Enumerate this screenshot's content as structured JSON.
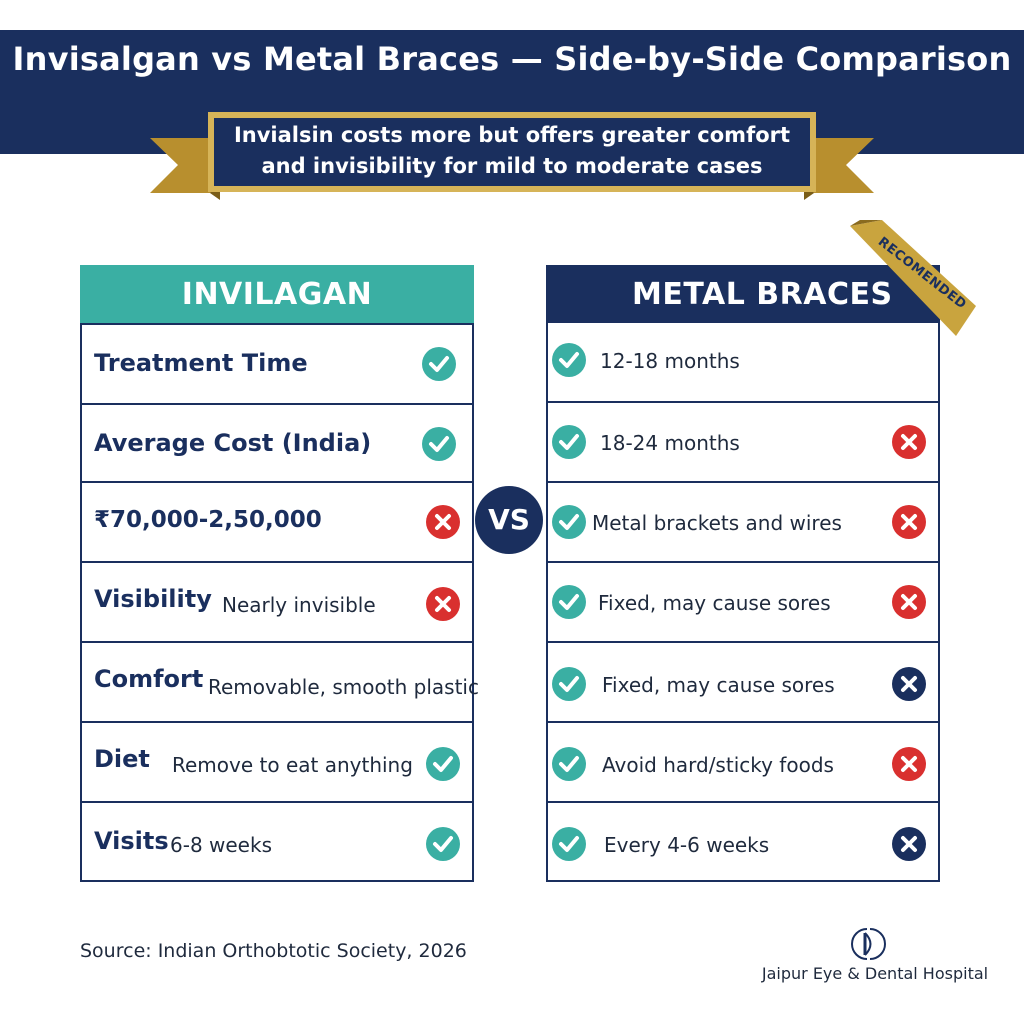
{
  "title": "Invisalgan vs Metal Braces — Side-by-Side Comparison",
  "ribbon": {
    "line1": "Invialsin costs more but offers greater comfort",
    "line2": "and invisibility for mild to moderate cases"
  },
  "vs_label": "VS",
  "badge": "RECOMENDED",
  "colors": {
    "navy": "#1a2f5e",
    "teal": "#3aafa3",
    "red": "#d9302f",
    "gold": "#c9a43e"
  },
  "left_table": {
    "header": "INVILAGAN",
    "rows": [
      {
        "label": "Treatment Time",
        "value": "",
        "icon": "check-icon"
      },
      {
        "label": "Average Cost (India)",
        "value": "",
        "icon": "check-icon"
      },
      {
        "label": "₹70,000-2,50,000",
        "value": "",
        "icon": "cross-icon"
      },
      {
        "label": "Visibility",
        "value": "Nearly invisible",
        "icon": "cross-icon"
      },
      {
        "label": "Comfort",
        "value": "Removable, smooth plastic",
        "icon": ""
      },
      {
        "label": "Diet",
        "value": "Remove to eat anything",
        "icon": "check-icon"
      },
      {
        "label": "Visits",
        "value": "6-8 weeks",
        "icon": "check-icon"
      }
    ]
  },
  "right_table": {
    "header": "METAL BRACES",
    "rows": [
      {
        "value": "12-18 months",
        "left_icon": "check-icon",
        "right_icon": ""
      },
      {
        "value": "18-24 months",
        "left_icon": "check-icon",
        "right_icon": "cross-icon"
      },
      {
        "value": "Metal brackets and wires",
        "left_icon": "check-icon",
        "right_icon": "cross-icon"
      },
      {
        "value": "Fixed, may cause sores",
        "left_icon": "check-icon",
        "right_icon": "cross-icon"
      },
      {
        "value": "Fixed, may cause sores",
        "left_icon": "check-icon",
        "right_icon": "cross-navy-icon"
      },
      {
        "value": "Avoid hard/sticky foods",
        "left_icon": "check-icon",
        "right_icon": "cross-icon"
      },
      {
        "value": "Every 4-6 weeks",
        "left_icon": "check-icon",
        "right_icon": "cross-navy-icon"
      }
    ]
  },
  "source": "Source: Indian Orthobtotic Society, 2026",
  "hospital": "Jaipur Eye & Dental Hospital"
}
